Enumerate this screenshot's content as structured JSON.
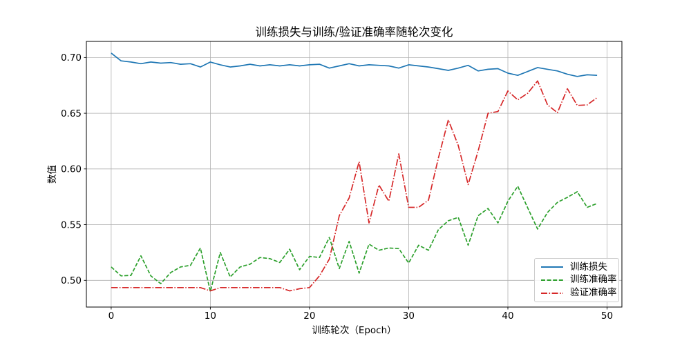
{
  "chart_data": {
    "type": "line",
    "title": "训练损失与训练/验证准确率随轮次变化",
    "xlabel": "训练轮次（Epoch）",
    "ylabel": "数值",
    "x": [
      0,
      1,
      2,
      3,
      4,
      5,
      6,
      7,
      8,
      9,
      10,
      11,
      12,
      13,
      14,
      15,
      16,
      17,
      18,
      19,
      20,
      21,
      22,
      23,
      24,
      25,
      26,
      27,
      28,
      29,
      30,
      31,
      32,
      33,
      34,
      35,
      36,
      37,
      38,
      39,
      40,
      41,
      42,
      43,
      44,
      45,
      46,
      47,
      48,
      49
    ],
    "series": [
      {
        "name": "训练损失",
        "color": "#1f77b4",
        "line_style": "solid",
        "values": [
          0.704,
          0.697,
          0.696,
          0.6945,
          0.696,
          0.695,
          0.6955,
          0.694,
          0.6945,
          0.6915,
          0.696,
          0.6935,
          0.6915,
          0.6925,
          0.694,
          0.6925,
          0.6935,
          0.6925,
          0.6935,
          0.6925,
          0.6935,
          0.694,
          0.6905,
          0.6925,
          0.6945,
          0.6925,
          0.6935,
          0.693,
          0.6925,
          0.6905,
          0.6935,
          0.6925,
          0.6915,
          0.69,
          0.6885,
          0.6905,
          0.693,
          0.688,
          0.6895,
          0.69,
          0.686,
          0.684,
          0.6875,
          0.691,
          0.6895,
          0.688,
          0.685,
          0.683,
          0.6845,
          0.684
        ]
      },
      {
        "name": "训练准确率",
        "color": "#2ca02c",
        "line_style": "dashed",
        "values": [
          0.512,
          0.504,
          0.5045,
          0.522,
          0.504,
          0.497,
          0.507,
          0.512,
          0.5135,
          0.529,
          0.49,
          0.525,
          0.503,
          0.512,
          0.5145,
          0.5205,
          0.5195,
          0.516,
          0.528,
          0.5095,
          0.5215,
          0.5205,
          0.5385,
          0.5105,
          0.535,
          0.5065,
          0.5325,
          0.527,
          0.529,
          0.5285,
          0.5155,
          0.5315,
          0.527,
          0.5455,
          0.5535,
          0.5565,
          0.5315,
          0.558,
          0.5645,
          0.5515,
          0.571,
          0.5845,
          0.565,
          0.546,
          0.561,
          0.57,
          0.5745,
          0.5795,
          0.5655,
          0.569
        ]
      },
      {
        "name": "验证准确率",
        "color": "#d62728",
        "line_style": "dashdot",
        "values": [
          0.4935,
          0.4935,
          0.4935,
          0.4935,
          0.4935,
          0.4935,
          0.4935,
          0.4935,
          0.4935,
          0.4935,
          0.4905,
          0.4935,
          0.4935,
          0.4935,
          0.4935,
          0.4935,
          0.4935,
          0.4935,
          0.4905,
          0.4925,
          0.4935,
          0.504,
          0.519,
          0.558,
          0.574,
          0.6065,
          0.5515,
          0.5855,
          0.571,
          0.6135,
          0.5655,
          0.5655,
          0.572,
          0.61,
          0.644,
          0.621,
          0.586,
          0.616,
          0.65,
          0.6515,
          0.67,
          0.662,
          0.668,
          0.679,
          0.6575,
          0.6505,
          0.672,
          0.657,
          0.6575,
          0.664
        ]
      }
    ],
    "xlim": [
      -2.5,
      51.5
    ],
    "ylim": [
      0.476,
      0.7145
    ],
    "x_ticks": [
      0,
      10,
      20,
      30,
      40,
      50
    ],
    "x_tick_labels": [
      "0",
      "10",
      "20",
      "30",
      "40",
      "50"
    ],
    "y_ticks": [
      0.5,
      0.55,
      0.6,
      0.65,
      0.7
    ],
    "y_tick_labels": [
      "0.50",
      "0.55",
      "0.60",
      "0.65",
      "0.70"
    ],
    "grid": true,
    "legend_position": "lower right",
    "legend_labels": [
      "训练损失",
      "训练准确率",
      "验证准确率"
    ]
  },
  "styles": {
    "background": "#ffffff",
    "grid_color": "#b0b0b0",
    "spine_color": "#000000",
    "text_color": "#000000",
    "legend_border": "#cccccc"
  }
}
